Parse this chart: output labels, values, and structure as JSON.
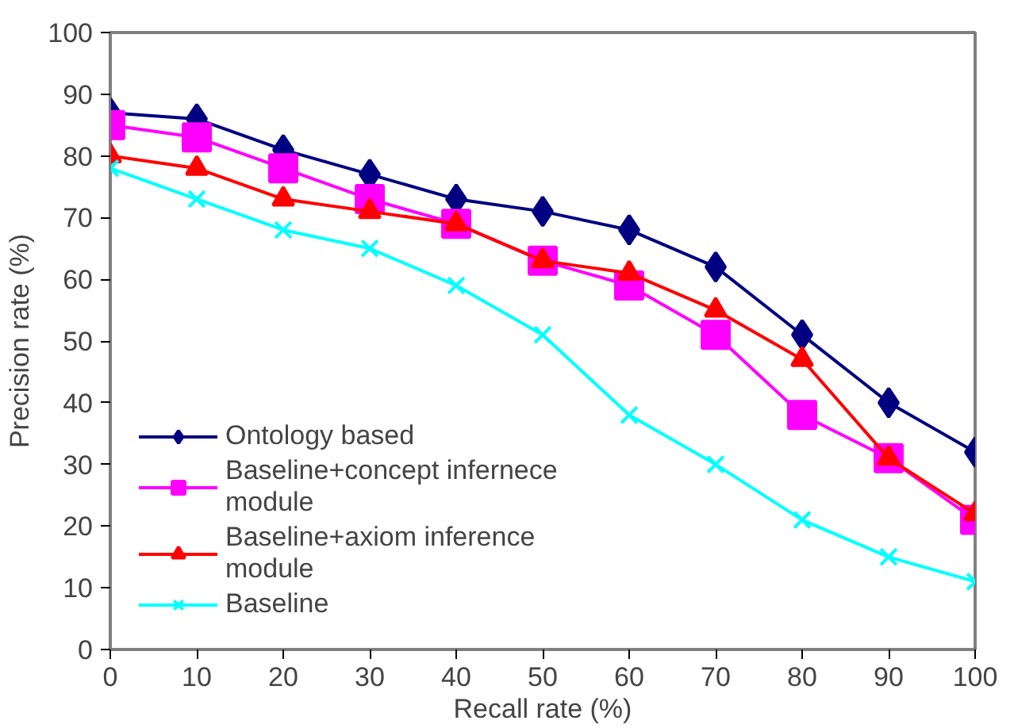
{
  "chart_data": {
    "type": "line",
    "xlabel": "Recall rate (%)",
    "ylabel": "Precision rate (%)",
    "x": [
      0,
      10,
      20,
      30,
      40,
      50,
      60,
      70,
      80,
      90,
      100
    ],
    "xlim": [
      0,
      100
    ],
    "xticks": [
      0,
      10,
      20,
      30,
      40,
      50,
      60,
      70,
      80,
      90,
      100
    ],
    "ylim": [
      0,
      100
    ],
    "yticks": [
      0,
      10,
      20,
      30,
      40,
      50,
      60,
      70,
      80,
      90,
      100
    ],
    "grid": false,
    "legend": "bottom left",
    "series": [
      {
        "name": "Ontology based",
        "color": "#000080",
        "marker": "diamond",
        "values": [
          87,
          86,
          81,
          77,
          73,
          71,
          68,
          62,
          51,
          40,
          32
        ]
      },
      {
        "name": "Baseline+concept infernece module",
        "color": "#ff00ff",
        "marker": "square",
        "values": [
          85,
          83,
          78,
          73,
          69,
          63,
          59,
          51,
          38,
          31,
          21
        ]
      },
      {
        "name": "Baseline+axiom inference module",
        "color": "#ff0000",
        "marker": "triangle",
        "values": [
          80,
          78,
          73,
          71,
          69,
          63,
          61,
          55,
          47,
          31,
          22
        ]
      },
      {
        "name": "Baseline",
        "color": "#00ffff",
        "marker": "cross",
        "values": [
          78,
          73,
          68,
          65,
          59,
          51,
          38,
          30,
          21,
          15,
          11
        ]
      }
    ]
  }
}
